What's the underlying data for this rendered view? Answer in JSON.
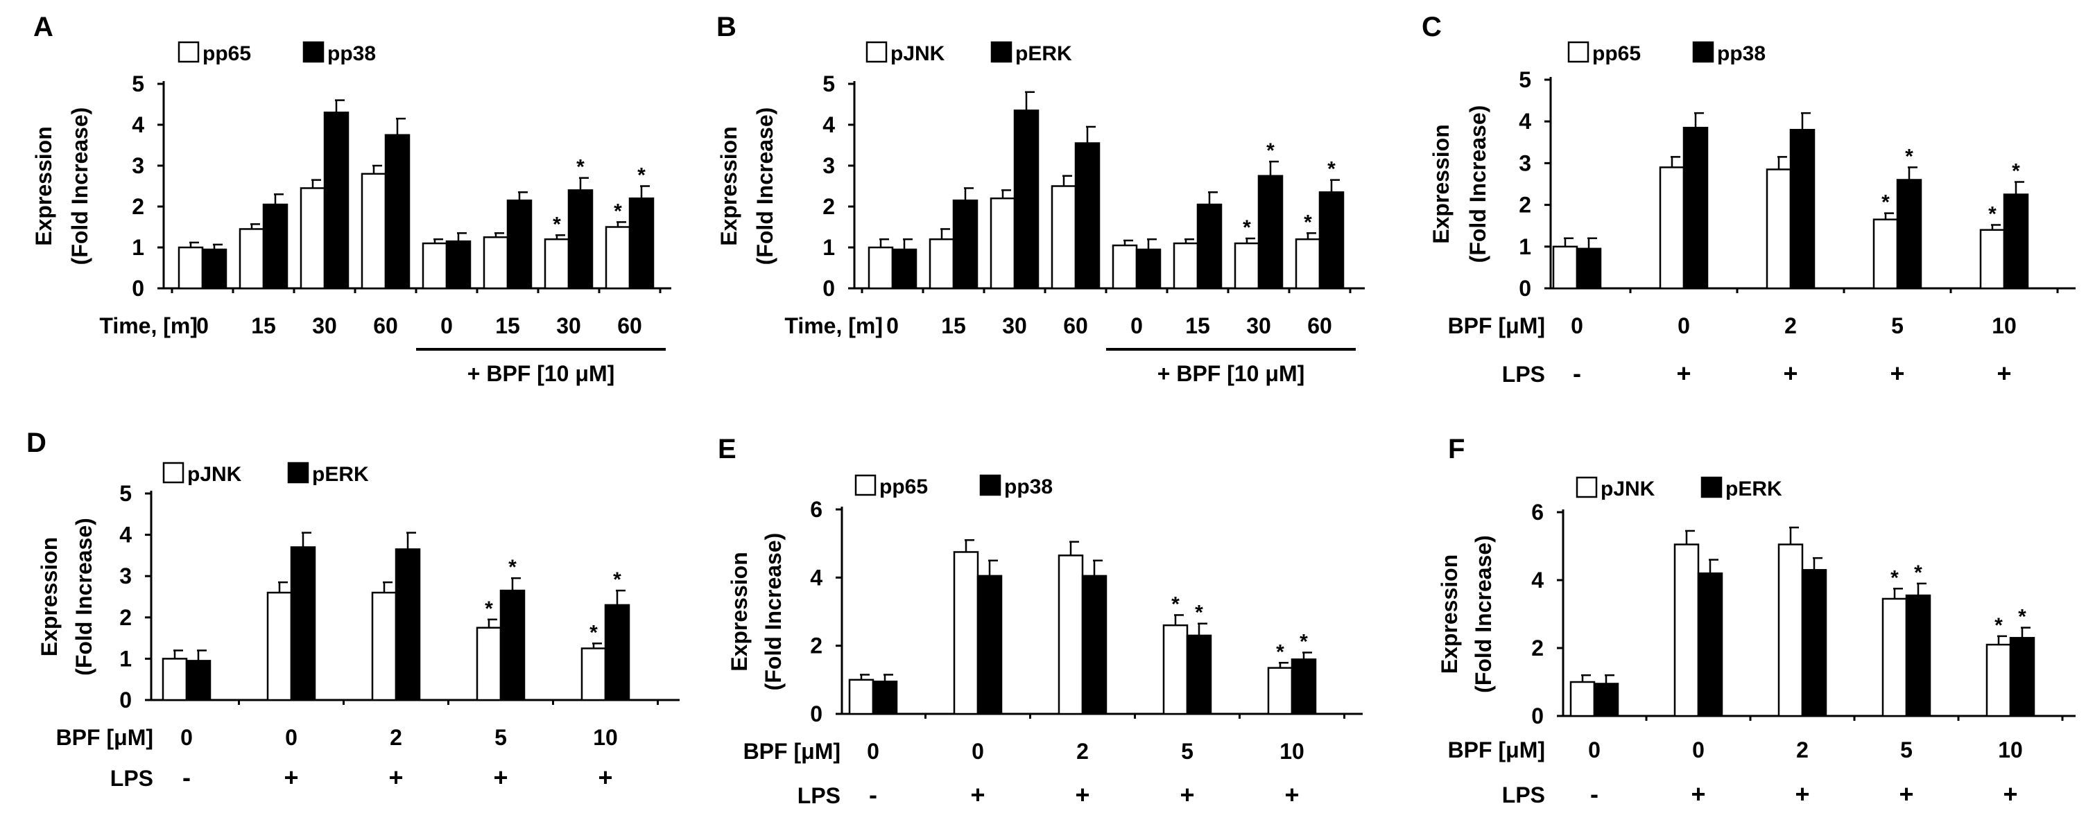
{
  "chart_data": [
    {
      "panel": "A",
      "type": "bar",
      "ylabel": [
        "Expression",
        "(Fold Increase)"
      ],
      "ylim": [
        0,
        5
      ],
      "yticks": [
        0,
        1,
        2,
        3,
        4,
        5
      ],
      "row_labels": [
        "Time, [m]"
      ],
      "categories": [
        [
          "0"
        ],
        [
          "15"
        ],
        [
          "30"
        ],
        [
          "60"
        ],
        [
          "0"
        ],
        [
          "15"
        ],
        [
          "30"
        ],
        [
          "60"
        ]
      ],
      "group_label": "+ BPF [10 μM]",
      "group_span": [
        4,
        7
      ],
      "series": [
        {
          "name": "pp65",
          "fill": "#ffffff",
          "values": [
            1.0,
            1.45,
            2.45,
            2.8,
            1.1,
            1.25,
            1.2,
            1.5
          ],
          "errors": [
            0.12,
            0.12,
            0.2,
            0.2,
            0.1,
            0.1,
            0.1,
            0.12
          ],
          "sig": [
            false,
            false,
            false,
            false,
            false,
            false,
            true,
            true
          ]
        },
        {
          "name": "pp38",
          "fill": "#000000",
          "values": [
            0.95,
            2.05,
            4.3,
            3.75,
            1.15,
            2.15,
            2.4,
            2.2
          ],
          "errors": [
            0.12,
            0.25,
            0.3,
            0.4,
            0.2,
            0.2,
            0.3,
            0.3
          ],
          "sig": [
            false,
            false,
            false,
            false,
            false,
            false,
            true,
            true
          ]
        }
      ]
    },
    {
      "panel": "B",
      "type": "bar",
      "ylabel": [
        "Expression",
        "(Fold Increase)"
      ],
      "ylim": [
        0,
        5
      ],
      "yticks": [
        0,
        1,
        2,
        3,
        4,
        5
      ],
      "row_labels": [
        "Time, [m]"
      ],
      "categories": [
        [
          "0"
        ],
        [
          "15"
        ],
        [
          "30"
        ],
        [
          "60"
        ],
        [
          "0"
        ],
        [
          "15"
        ],
        [
          "30"
        ],
        [
          "60"
        ]
      ],
      "group_label": "+ BPF [10 μM]",
      "group_span": [
        4,
        7
      ],
      "series": [
        {
          "name": "pJNK",
          "fill": "#ffffff",
          "values": [
            1.0,
            1.2,
            2.2,
            2.5,
            1.05,
            1.1,
            1.1,
            1.2
          ],
          "errors": [
            0.2,
            0.25,
            0.2,
            0.25,
            0.12,
            0.1,
            0.12,
            0.15
          ],
          "sig": [
            false,
            false,
            false,
            false,
            false,
            false,
            true,
            true
          ]
        },
        {
          "name": "pERK",
          "fill": "#000000",
          "values": [
            0.95,
            2.15,
            4.35,
            3.55,
            0.95,
            2.05,
            2.75,
            2.35
          ],
          "errors": [
            0.25,
            0.3,
            0.45,
            0.4,
            0.25,
            0.3,
            0.35,
            0.3
          ],
          "sig": [
            false,
            false,
            false,
            false,
            false,
            false,
            true,
            true
          ]
        }
      ]
    },
    {
      "panel": "C",
      "type": "bar",
      "ylabel": [
        "Expression",
        "(Fold Increase)"
      ],
      "ylim": [
        0,
        5
      ],
      "yticks": [
        0,
        1,
        2,
        3,
        4,
        5
      ],
      "row_labels": [
        "BPF [μM]",
        "LPS"
      ],
      "categories": [
        [
          "0",
          "-"
        ],
        [
          "0",
          "+"
        ],
        [
          "2",
          "+"
        ],
        [
          "5",
          "+"
        ],
        [
          "10",
          "+"
        ]
      ],
      "series": [
        {
          "name": "pp65",
          "fill": "#ffffff",
          "values": [
            1.0,
            2.9,
            2.85,
            1.65,
            1.4
          ],
          "errors": [
            0.2,
            0.25,
            0.3,
            0.15,
            0.12
          ],
          "sig": [
            false,
            false,
            false,
            true,
            true
          ]
        },
        {
          "name": "pp38",
          "fill": "#000000",
          "values": [
            0.95,
            3.85,
            3.8,
            2.6,
            2.25
          ],
          "errors": [
            0.25,
            0.35,
            0.4,
            0.3,
            0.3
          ],
          "sig": [
            false,
            false,
            false,
            true,
            true
          ]
        }
      ]
    },
    {
      "panel": "D",
      "type": "bar",
      "ylabel": [
        "Expression",
        "(Fold Increase)"
      ],
      "ylim": [
        0,
        5
      ],
      "yticks": [
        0,
        1,
        2,
        3,
        4,
        5
      ],
      "row_labels": [
        "BPF [μM]",
        "LPS"
      ],
      "categories": [
        [
          "0",
          "-"
        ],
        [
          "0",
          "+"
        ],
        [
          "2",
          "+"
        ],
        [
          "5",
          "+"
        ],
        [
          "10",
          "+"
        ]
      ],
      "series": [
        {
          "name": "pJNK",
          "fill": "#ffffff",
          "values": [
            1.0,
            2.6,
            2.6,
            1.75,
            1.25
          ],
          "errors": [
            0.2,
            0.25,
            0.25,
            0.2,
            0.12
          ],
          "sig": [
            false,
            false,
            false,
            true,
            true
          ]
        },
        {
          "name": "pERK",
          "fill": "#000000",
          "values": [
            0.95,
            3.7,
            3.65,
            2.65,
            2.3
          ],
          "errors": [
            0.25,
            0.35,
            0.4,
            0.3,
            0.35
          ],
          "sig": [
            false,
            false,
            false,
            true,
            true
          ]
        }
      ]
    },
    {
      "panel": "E",
      "type": "bar",
      "ylabel": [
        "Expression",
        "(Fold Increase)"
      ],
      "ylim": [
        0,
        6
      ],
      "yticks": [
        0,
        2,
        4,
        6
      ],
      "row_labels": [
        "BPF [μM]",
        "LPS"
      ],
      "categories": [
        [
          "0",
          "-"
        ],
        [
          "0",
          "+"
        ],
        [
          "2",
          "+"
        ],
        [
          "5",
          "+"
        ],
        [
          "10",
          "+"
        ]
      ],
      "series": [
        {
          "name": "pp65",
          "fill": "#ffffff",
          "values": [
            1.0,
            4.75,
            4.65,
            2.6,
            1.35
          ],
          "errors": [
            0.15,
            0.35,
            0.4,
            0.3,
            0.15
          ],
          "sig": [
            false,
            false,
            false,
            true,
            true
          ]
        },
        {
          "name": "pp38",
          "fill": "#000000",
          "values": [
            0.95,
            4.05,
            4.05,
            2.3,
            1.6
          ],
          "errors": [
            0.2,
            0.45,
            0.45,
            0.35,
            0.2
          ],
          "sig": [
            false,
            false,
            false,
            true,
            true
          ]
        }
      ]
    },
    {
      "panel": "F",
      "type": "bar",
      "ylabel": [
        "Expression",
        "(Fold Increase)"
      ],
      "ylim": [
        0,
        6
      ],
      "yticks": [
        0,
        2,
        4,
        6
      ],
      "row_labels": [
        "BPF [μM]",
        "LPS"
      ],
      "categories": [
        [
          "0",
          "-"
        ],
        [
          "0",
          "+"
        ],
        [
          "2",
          "+"
        ],
        [
          "5",
          "+"
        ],
        [
          "10",
          "+"
        ]
      ],
      "series": [
        {
          "name": "pJNK",
          "fill": "#ffffff",
          "values": [
            1.0,
            5.05,
            5.05,
            3.45,
            2.1
          ],
          "errors": [
            0.2,
            0.4,
            0.5,
            0.3,
            0.25
          ],
          "sig": [
            false,
            false,
            false,
            true,
            true
          ]
        },
        {
          "name": "pERK",
          "fill": "#000000",
          "values": [
            0.95,
            4.2,
            4.3,
            3.55,
            2.3
          ],
          "errors": [
            0.25,
            0.4,
            0.35,
            0.35,
            0.3
          ],
          "sig": [
            false,
            false,
            false,
            true,
            true
          ]
        }
      ]
    }
  ],
  "colors": {
    "ink": "#000000",
    "open_bar": "#ffffff",
    "filled_bar": "#000000"
  }
}
